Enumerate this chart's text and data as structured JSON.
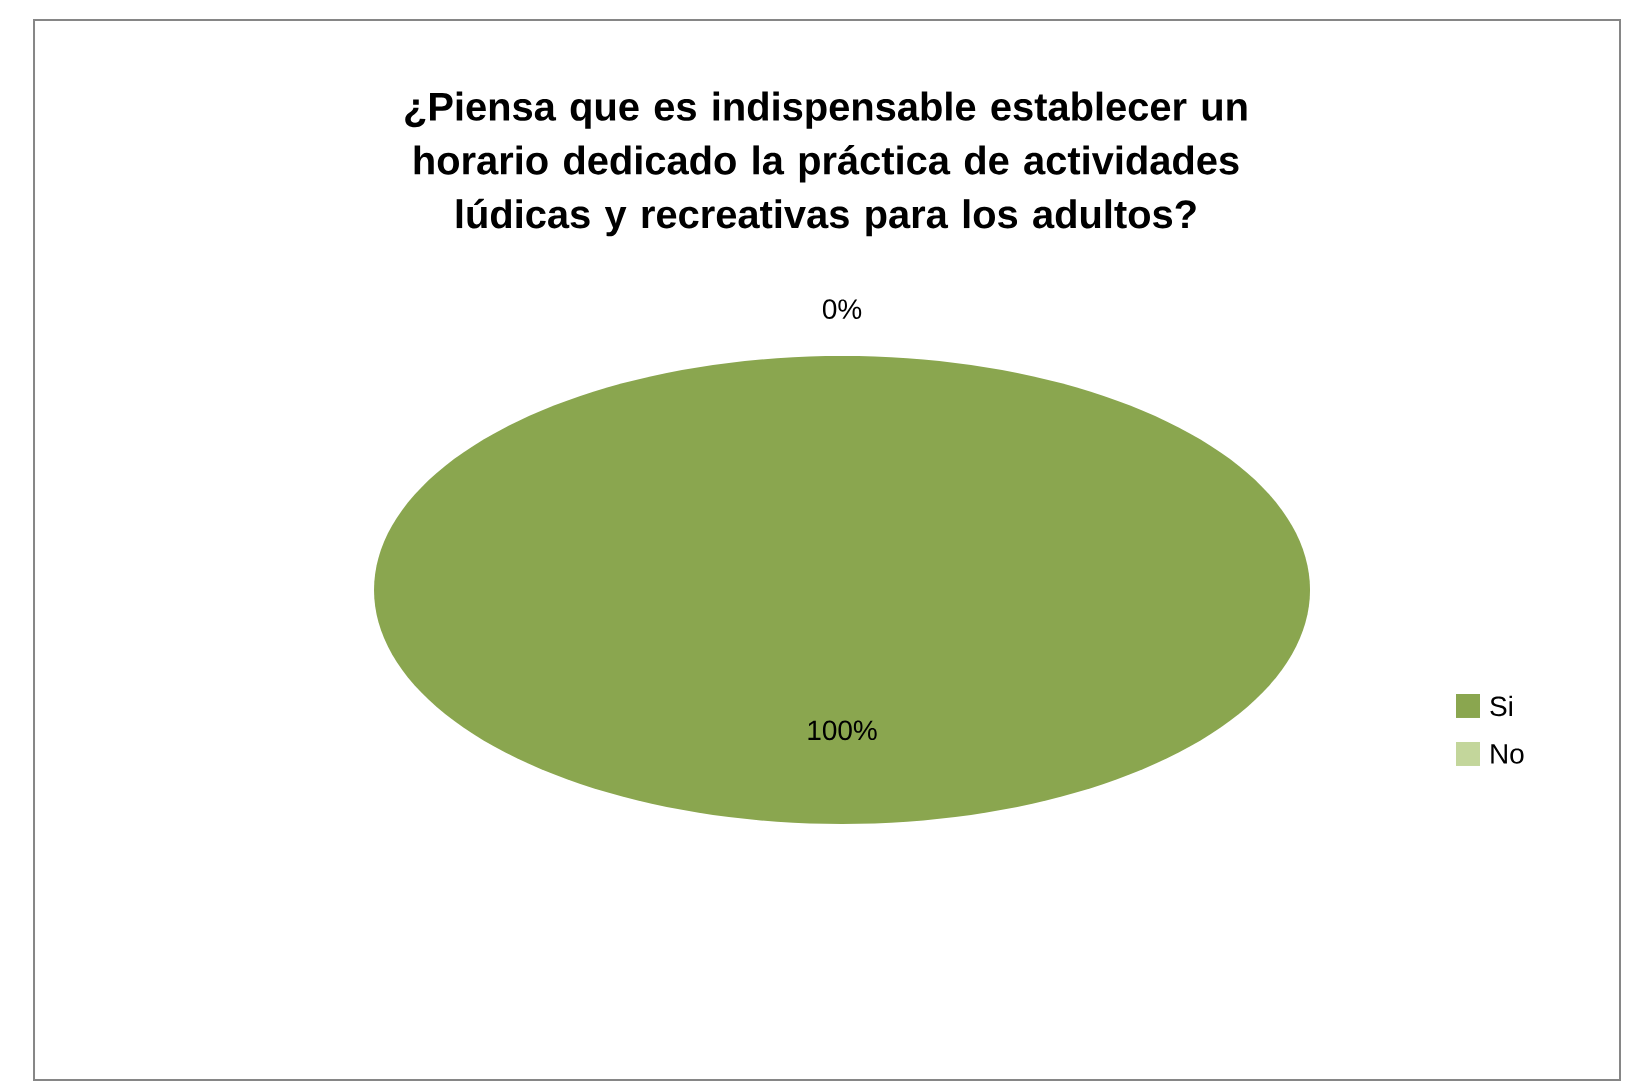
{
  "chart_data": {
    "type": "pie",
    "title": "¿Piensa que es indispensable establecer un horario dedicado la práctica de actividades lúdicas y recreativas para los adultos?",
    "categories": [
      "Si",
      "No"
    ],
    "values": [
      100,
      0
    ],
    "colors": [
      "#8aa64f",
      "#c3d69b"
    ],
    "value_labels": [
      "100%",
      "0%"
    ],
    "legend": "right"
  }
}
